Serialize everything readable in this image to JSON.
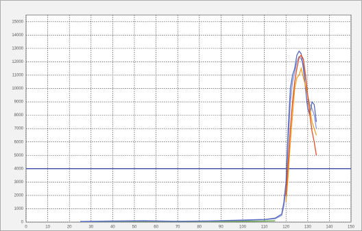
{
  "chart_data": {
    "type": "line",
    "x": [
      25,
      40,
      55,
      70,
      85,
      100,
      110,
      115,
      118,
      119,
      120,
      121,
      122,
      123,
      124,
      125,
      126,
      127,
      128,
      129,
      130,
      131,
      132,
      133,
      134
    ],
    "series": [
      {
        "color": "#66aa44",
        "values": [
          20,
          40,
          50,
          30,
          40,
          60,
          80,
          100,
          null,
          null,
          null,
          null,
          null,
          null,
          null,
          null,
          null,
          null,
          null,
          null,
          null,
          null,
          null,
          null,
          null
        ]
      },
      {
        "color": "#8899dd",
        "values": [
          30,
          60,
          80,
          50,
          70,
          120,
          180,
          250,
          500,
          1200,
          2500,
          6000,
          9000,
          10500,
          11200,
          12000,
          12400,
          12200,
          11800,
          10800,
          9500,
          8800,
          8500,
          8000,
          7000
        ]
      },
      {
        "color": "#5566bb",
        "values": [
          50,
          80,
          100,
          60,
          90,
          150,
          200,
          300,
          600,
          1500,
          3000,
          7000,
          10000,
          11000,
          11500,
          12500,
          12800,
          12600,
          11500,
          10000,
          8500,
          8000,
          9000,
          8800,
          7500
        ]
      },
      {
        "color": "#f0a020",
        "values": [
          null,
          null,
          null,
          null,
          null,
          null,
          null,
          null,
          null,
          null,
          1500,
          3500,
          6000,
          8000,
          10000,
          10800,
          11000,
          11500,
          10800,
          10200,
          9500,
          8500,
          7500,
          7000,
          6500
        ]
      },
      {
        "color": "#e05020",
        "values": [
          null,
          null,
          null,
          null,
          null,
          null,
          null,
          null,
          null,
          null,
          2000,
          4500,
          7000,
          9000,
          10500,
          11500,
          12300,
          12500,
          12200,
          11000,
          9500,
          8000,
          6800,
          6000,
          5000
        ]
      }
    ],
    "reference_line": {
      "value": 4000,
      "color": "#4455aa"
    },
    "xlim": [
      0,
      150
    ],
    "xticks": [
      0,
      10,
      20,
      30,
      40,
      50,
      60,
      70,
      80,
      90,
      100,
      110,
      120,
      130,
      140,
      150
    ],
    "ylim": [
      0,
      15500
    ],
    "yticks": [
      0,
      1000,
      2000,
      3000,
      4000,
      5000,
      6000,
      7000,
      8000,
      9000,
      10000,
      11000,
      12000,
      13000,
      14000,
      15000
    ],
    "grid": true
  }
}
